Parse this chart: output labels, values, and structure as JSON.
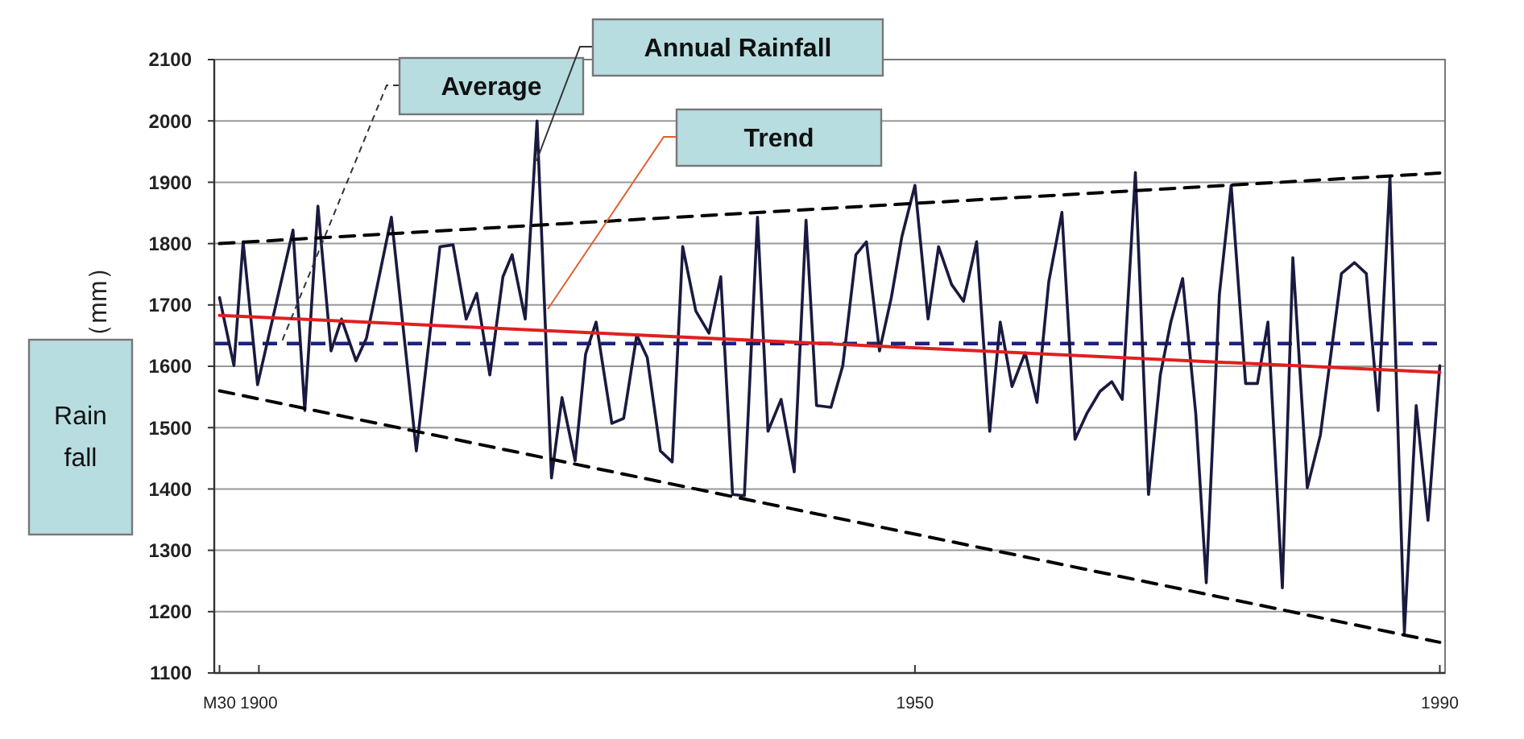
{
  "chart_data": {
    "type": "line",
    "ylabel": "（mm）",
    "xlim": [
      1896.6,
      1990.4
    ],
    "xticks": [
      {
        "value": 1897,
        "label": "M30"
      },
      1900,
      1950,
      1990
    ],
    "ylim": [
      1100,
      2100
    ],
    "yticks": [
      1100,
      1200,
      1300,
      1400,
      1500,
      1600,
      1700,
      1800,
      1900,
      2000,
      2100
    ],
    "grid": "y",
    "marker": "none",
    "series": [
      {
        "color": "#1a1a40",
        "line_style": "solid",
        "x": [
          1897.0,
          1898.1,
          1898.8,
          1899.9,
          1902.6,
          1903.5,
          1904.5,
          1905.5,
          1906.3,
          1907.4,
          1908.2,
          1910.1,
          1912.0,
          1913.8,
          1914.8,
          1915.8,
          1916.6,
          1917.6,
          1918.6,
          1919.3,
          1920.3,
          1921.2,
          1922.3,
          1923.1,
          1924.1,
          1924.9,
          1925.7,
          1926.9,
          1927.8,
          1928.8,
          1929.6,
          1930.6,
          1931.5,
          1932.3,
          1933.3,
          1934.3,
          1935.2,
          1936.1,
          1937.0,
          1938.0,
          1938.8,
          1939.8,
          1940.8,
          1941.7,
          1942.5,
          1943.6,
          1944.5,
          1945.5,
          1946.3,
          1947.3,
          1948.2,
          1949.0,
          1950.0,
          1951.0,
          1951.8,
          1952.8,
          1953.7,
          1954.7,
          1955.7,
          1956.5,
          1957.4,
          1958.4,
          1959.3,
          1960.2,
          1961.2,
          1962.2,
          1963.1,
          1964.1,
          1965.0,
          1965.8,
          1966.8,
          1967.8,
          1968.7,
          1969.5,
          1970.4,
          1971.4,
          1972.2,
          1973.2,
          1974.1,
          1975.2,
          1976.1,
          1976.9,
          1978.0,
          1978.8,
          1979.9,
          1980.9,
          1982.5,
          1983.5,
          1984.4,
          1985.3,
          1986.2,
          1987.3,
          1988.2,
          1989.1,
          1990.0
        ],
        "values": [
          1712,
          1601,
          1803,
          1570,
          1822,
          1528,
          1861,
          1625,
          1677,
          1609,
          1646,
          1843,
          1462,
          1795,
          1798,
          1677,
          1719,
          1586,
          1746,
          1782,
          1677,
          2000,
          1418,
          1549,
          1446,
          1620,
          1672,
          1507,
          1515,
          1651,
          1614,
          1462,
          1444,
          1795,
          1690,
          1654,
          1746,
          1391,
          1389,
          1843,
          1494,
          1546,
          1428,
          1838,
          1536,
          1533,
          1601,
          1782,
          1803,
          1625,
          1712,
          1811,
          1895,
          1677,
          1795,
          1733,
          1706,
          1803,
          1494,
          1672,
          1567,
          1622,
          1541,
          1738,
          1851,
          1481,
          1523,
          1559,
          1575,
          1546,
          1916,
          1391,
          1586,
          1672,
          1743,
          1523,
          1247,
          1717,
          1895,
          1572,
          1572,
          1672,
          1239,
          1777,
          1402,
          1488,
          1751,
          1769,
          1751,
          1528,
          1908,
          1166,
          1536,
          1349,
          1601
        ]
      },
      {
        "color": "#e02020",
        "line_style": "solid",
        "x": [
          1897,
          1990
        ],
        "values": [
          1683,
          1590
        ]
      },
      {
        "color": "#000000",
        "line_style": "dashed",
        "x": [
          1897,
          1990
        ],
        "values": [
          1800,
          1915
        ]
      },
      {
        "color": "#000000",
        "line_style": "dashed",
        "x": [
          1897,
          1990
        ],
        "values": [
          1560,
          1150
        ]
      }
    ],
    "ref_lines": [
      {
        "axis": "y",
        "value": 1637,
        "color": "#202080",
        "line_style": "dashed"
      }
    ],
    "annotations": [
      "Average",
      "Annual Rainfall",
      "Trend",
      "Rain fall"
    ]
  }
}
